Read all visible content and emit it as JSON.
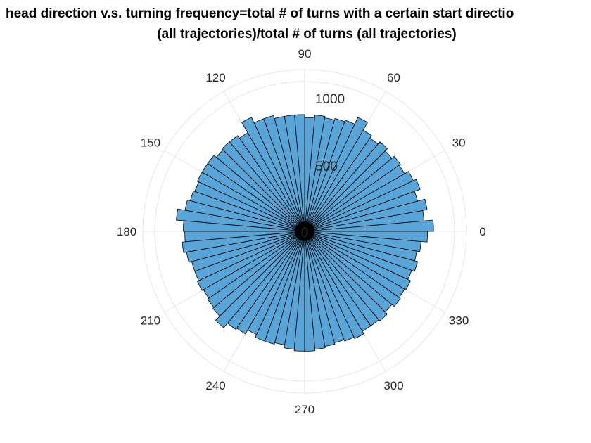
{
  "chart_data": {
    "type": "polar-histogram",
    "title_lines": [
      "head direction v.s. turning frequency=total # of turns with a certain start directio",
      "(all trajectories)/total # of turns (all trajectories)"
    ],
    "theta_unit": "degrees",
    "theta_ticks": [
      "0",
      "30",
      "60",
      "90",
      "120",
      "150",
      "180",
      "210",
      "240",
      "270",
      "300",
      "330"
    ],
    "r_ticks": [
      "0",
      "500",
      "1000"
    ],
    "rlim": [
      0,
      1000
    ],
    "grid": true,
    "bar_color": "#5aa5d8",
    "edge_color": "#000000",
    "series": [
      {
        "bin_width_deg": 5,
        "bin_centers_deg": [
          2.5,
          7.5,
          12.5,
          17.5,
          22.5,
          27.5,
          32.5,
          37.5,
          42.5,
          47.5,
          52.5,
          57.5,
          62.5,
          67.5,
          72.5,
          77.5,
          82.5,
          87.5,
          92.5,
          97.5,
          102.5,
          107.5,
          112.5,
          117.5,
          122.5,
          127.5,
          132.5,
          137.5,
          142.5,
          147.5,
          152.5,
          157.5,
          162.5,
          167.5,
          172.5,
          177.5,
          182.5,
          187.5,
          192.5,
          197.5,
          202.5,
          207.5,
          212.5,
          217.5,
          222.5,
          227.5,
          232.5,
          237.5,
          242.5,
          247.5,
          252.5,
          257.5,
          262.5,
          267.5,
          272.5,
          277.5,
          282.5,
          287.5,
          292.5,
          297.5,
          302.5,
          307.5,
          312.5,
          317.5,
          322.5,
          327.5,
          332.5,
          337.5,
          342.5,
          347.5,
          352.5,
          357.5
        ],
        "counts": [
          860,
          800,
          830,
          780,
          820,
          800,
          770,
          780,
          760,
          780,
          760,
          780,
          840,
          790,
          780,
          770,
          780,
          760,
          780,
          780,
          780,
          800,
          800,
          840,
          760,
          780,
          780,
          770,
          790,
          790,
          790,
          780,
          790,
          810,
          860,
          810,
          800,
          820,
          800,
          780,
          780,
          790,
          780,
          790,
          800,
          840,
          800,
          790,
          760,
          780,
          780,
          770,
          790,
          800,
          800,
          790,
          780,
          770,
          780,
          790,
          770,
          770,
          780,
          760,
          780,
          770,
          780,
          760,
          780,
          760,
          780,
          820
        ]
      }
    ]
  }
}
